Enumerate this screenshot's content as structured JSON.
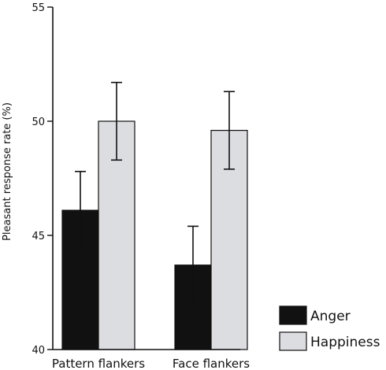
{
  "chart_data": {
    "type": "bar",
    "categories": [
      "Pattern flankers",
      "Face flankers"
    ],
    "series": [
      {
        "name": "Anger",
        "values": [
          46.1,
          43.7
        ],
        "err_low": [
          44.4,
          42.0
        ],
        "err_high": [
          47.8,
          45.4
        ],
        "color": "#111111"
      },
      {
        "name": "Happiness",
        "values": [
          50.0,
          49.6
        ],
        "err_low": [
          48.3,
          47.9
        ],
        "err_high": [
          51.7,
          51.3
        ],
        "color": "#dcdde1"
      }
    ],
    "title": "",
    "xlabel": "",
    "ylabel": "Pleasant  response  rate  (%)",
    "ylim": [
      40,
      55
    ],
    "yticks": [
      40,
      45,
      50,
      55
    ],
    "legend_position": "bottom-right",
    "grid": false
  }
}
